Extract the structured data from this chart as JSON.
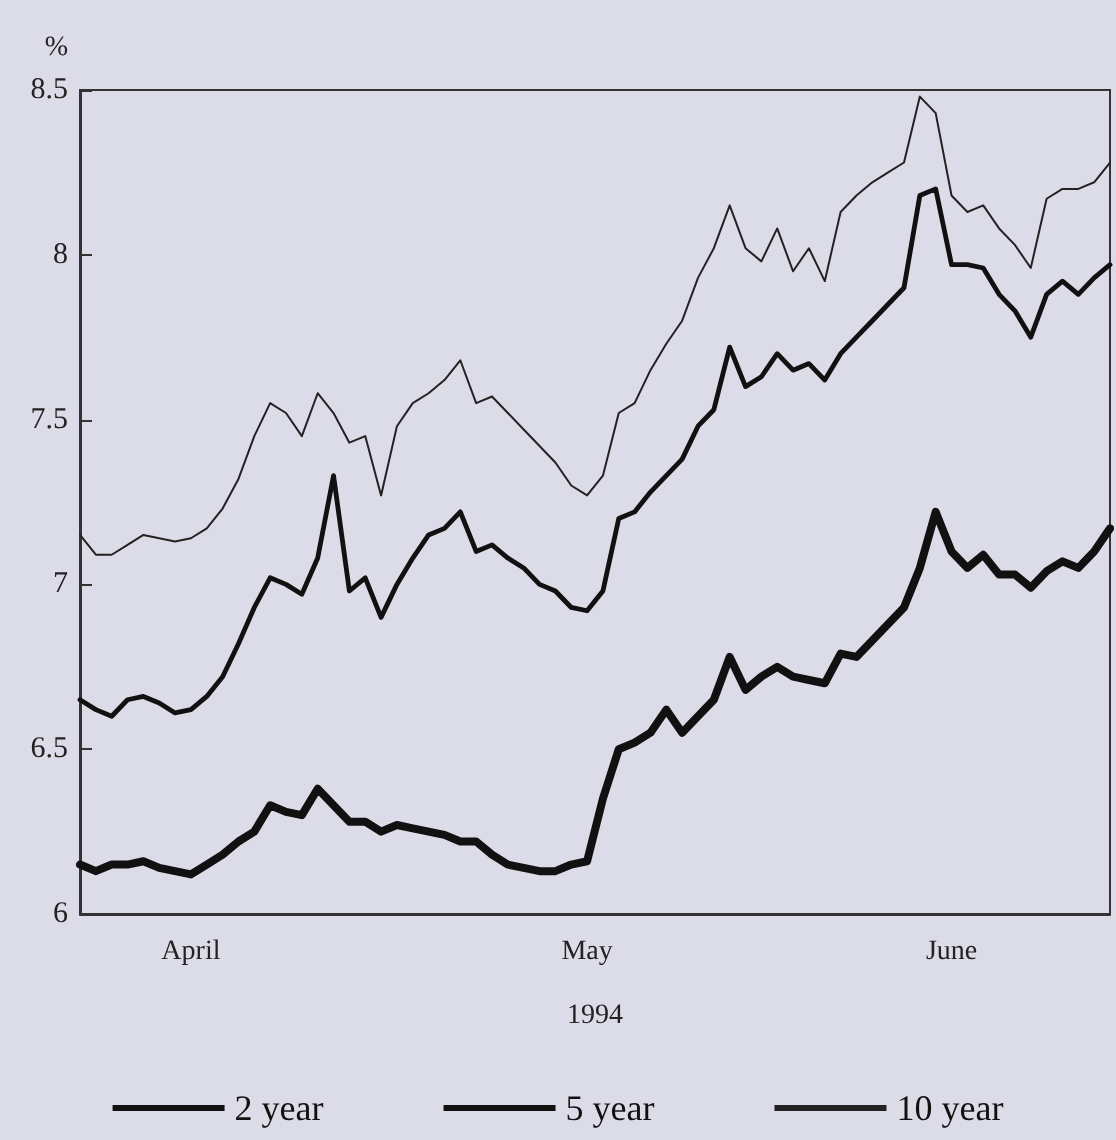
{
  "chart_data": {
    "type": "line",
    "ylabel": "%",
    "xlabel": "1994",
    "categories": [
      null,
      null,
      null,
      null,
      null,
      null,
      null,
      "April",
      null,
      null,
      null,
      null,
      null,
      null,
      null,
      null,
      null,
      null,
      null,
      null,
      null,
      null,
      null,
      null,
      null,
      null,
      null,
      null,
      null,
      null,
      null,
      null,
      "May",
      null,
      null,
      null,
      null,
      null,
      null,
      null,
      null,
      null,
      null,
      null,
      null,
      null,
      null,
      null,
      null,
      null,
      null,
      null,
      null,
      null,
      null,
      "June",
      null,
      null,
      null,
      null,
      null,
      null,
      null,
      null,
      null,
      null
    ],
    "series": [
      {
        "name": "2 year",
        "color": "#111111",
        "values": [
          6.15,
          6.13,
          6.15,
          6.15,
          6.16,
          6.14,
          6.13,
          6.12,
          6.15,
          6.18,
          6.22,
          6.25,
          6.33,
          6.31,
          6.3,
          6.38,
          6.33,
          6.28,
          6.28,
          6.25,
          6.27,
          6.26,
          6.25,
          6.24,
          6.22,
          6.22,
          6.18,
          6.15,
          6.14,
          6.13,
          6.13,
          6.15,
          6.16,
          6.35,
          6.5,
          6.52,
          6.55,
          6.62,
          6.55,
          6.6,
          6.65,
          6.78,
          6.68,
          6.72,
          6.75,
          6.72,
          6.71,
          6.7,
          6.79,
          6.78,
          6.83,
          6.88,
          6.93,
          7.05,
          7.22,
          7.1,
          7.05,
          7.09,
          7.03,
          7.03,
          6.99,
          7.04,
          7.07,
          7.05,
          7.1,
          7.17
        ]
      },
      {
        "name": "5 year",
        "color": "#111111",
        "values": [
          6.65,
          6.62,
          6.6,
          6.65,
          6.66,
          6.64,
          6.61,
          6.62,
          6.66,
          6.72,
          6.82,
          6.93,
          7.02,
          7.0,
          6.97,
          7.08,
          7.33,
          6.98,
          7.02,
          6.9,
          7.0,
          7.08,
          7.15,
          7.17,
          7.22,
          7.1,
          7.12,
          7.08,
          7.05,
          7.0,
          6.98,
          6.93,
          6.92,
          6.98,
          7.2,
          7.22,
          7.28,
          7.33,
          7.38,
          7.48,
          7.53,
          7.72,
          7.6,
          7.63,
          7.7,
          7.65,
          7.67,
          7.62,
          7.7,
          7.75,
          7.8,
          7.85,
          7.9,
          8.18,
          8.2,
          7.97,
          7.97,
          7.96,
          7.88,
          7.83,
          7.75,
          7.88,
          7.92,
          7.88,
          7.93,
          7.97
        ]
      },
      {
        "name": "10 year",
        "color": "#222222",
        "values": [
          7.15,
          7.09,
          7.09,
          7.12,
          7.15,
          7.14,
          7.13,
          7.14,
          7.17,
          7.23,
          7.32,
          7.45,
          7.55,
          7.52,
          7.45,
          7.58,
          7.52,
          7.43,
          7.45,
          7.27,
          7.48,
          7.55,
          7.58,
          7.62,
          7.68,
          7.55,
          7.57,
          7.52,
          7.47,
          7.42,
          7.37,
          7.3,
          7.27,
          7.33,
          7.52,
          7.55,
          7.65,
          7.73,
          7.8,
          7.93,
          8.02,
          8.15,
          8.02,
          7.98,
          8.08,
          7.95,
          8.02,
          7.92,
          8.13,
          8.18,
          8.22,
          8.25,
          8.28,
          8.48,
          8.43,
          8.18,
          8.13,
          8.15,
          8.08,
          8.03,
          7.96,
          8.17,
          8.2,
          8.2,
          8.22,
          8.28
        ]
      }
    ],
    "ylim": [
      6,
      8.5
    ],
    "yticks": [
      6,
      6.5,
      7,
      7.5,
      8,
      8.5
    ],
    "grid": false,
    "legend": "bottom",
    "marker": "none",
    "line_style": "solid"
  }
}
